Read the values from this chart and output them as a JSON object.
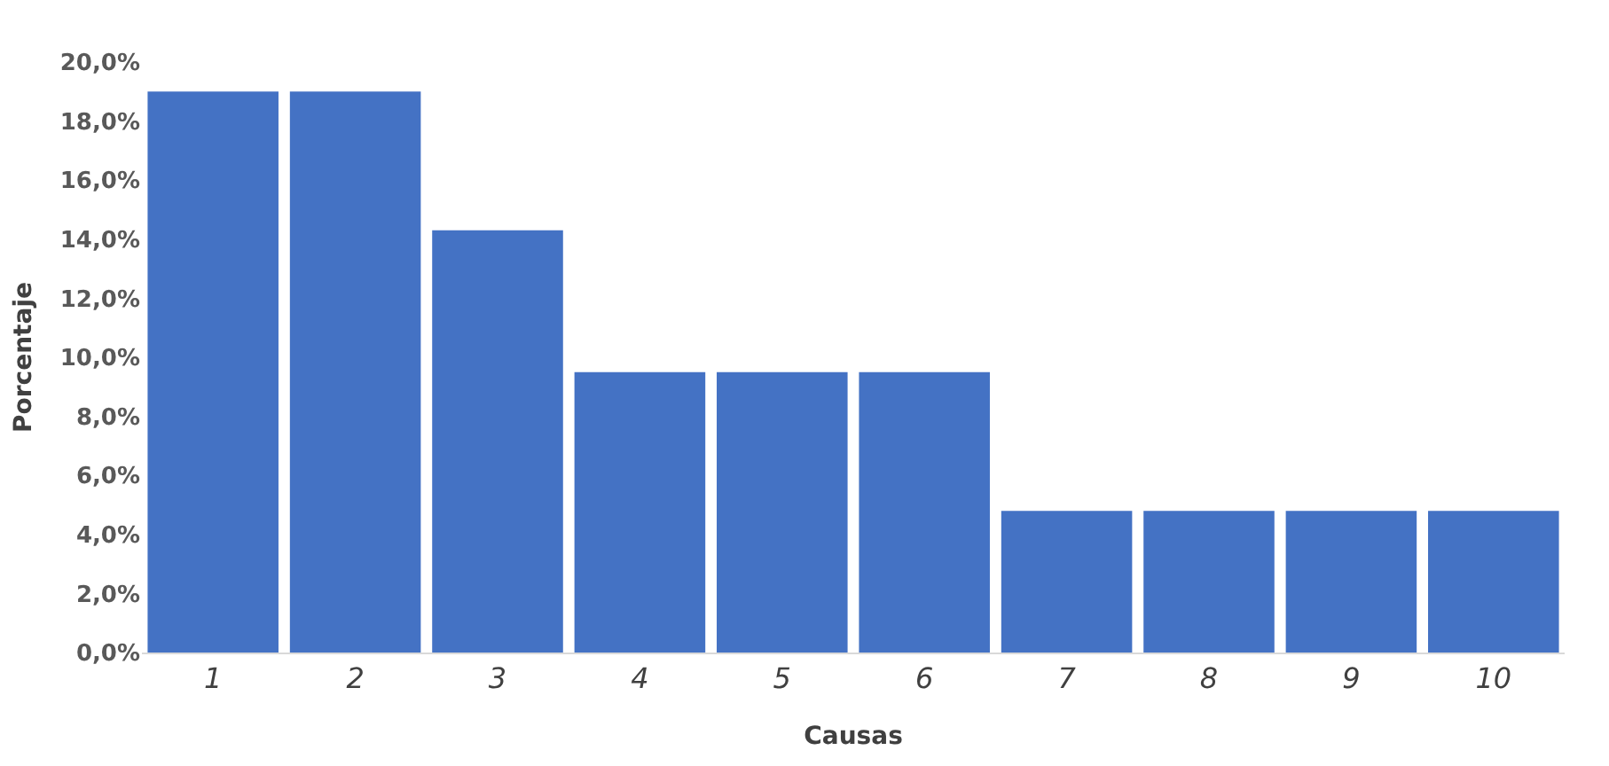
{
  "chart_data": {
    "type": "bar",
    "xlabel": "Causas",
    "ylabel": "Porcentaje",
    "categories": [
      "1",
      "2",
      "3",
      "4",
      "5",
      "6",
      "7",
      "8",
      "9",
      "10"
    ],
    "values": [
      19.0,
      19.0,
      14.3,
      9.5,
      9.5,
      9.5,
      4.8,
      4.8,
      4.8,
      4.8
    ],
    "color": "#4472c4",
    "ylim": [
      0,
      20
    ],
    "yticks": [
      {
        "value": 0,
        "label": "0,0%"
      },
      {
        "value": 2,
        "label": "2,0%"
      },
      {
        "value": 4,
        "label": "4,0%"
      },
      {
        "value": 6,
        "label": "6,0%"
      },
      {
        "value": 8,
        "label": "8,0%"
      },
      {
        "value": 10,
        "label": "10,0%"
      },
      {
        "value": 12,
        "label": "12,0%"
      },
      {
        "value": 14,
        "label": "14,0%"
      },
      {
        "value": 16,
        "label": "16,0%"
      },
      {
        "value": 18,
        "label": "18,0%"
      },
      {
        "value": 20,
        "label": "20,0%"
      }
    ],
    "grid": false
  }
}
